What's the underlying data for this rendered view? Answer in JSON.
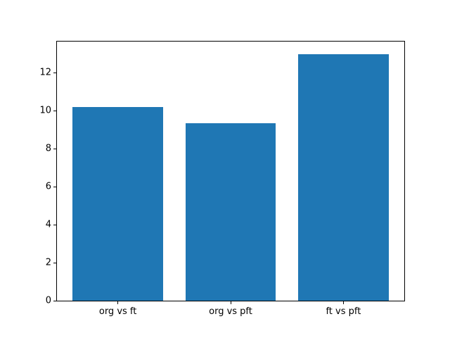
{
  "chart_data": {
    "type": "bar",
    "categories": [
      "org vs ft",
      "org vs pft",
      "ft vs pft"
    ],
    "values": [
      10.2,
      9.35,
      13.0
    ],
    "title": "",
    "xlabel": "",
    "ylabel": "",
    "ylim": [
      0,
      13.65
    ],
    "xlim": [
      -0.54,
      2.54
    ],
    "yticks": [
      0,
      2,
      4,
      6,
      8,
      10,
      12
    ],
    "bar_width": 0.8,
    "bar_color": "#1f77b4",
    "axis_color": "#000000",
    "background_color": "#ffffff",
    "grid": false,
    "legend": null
  }
}
